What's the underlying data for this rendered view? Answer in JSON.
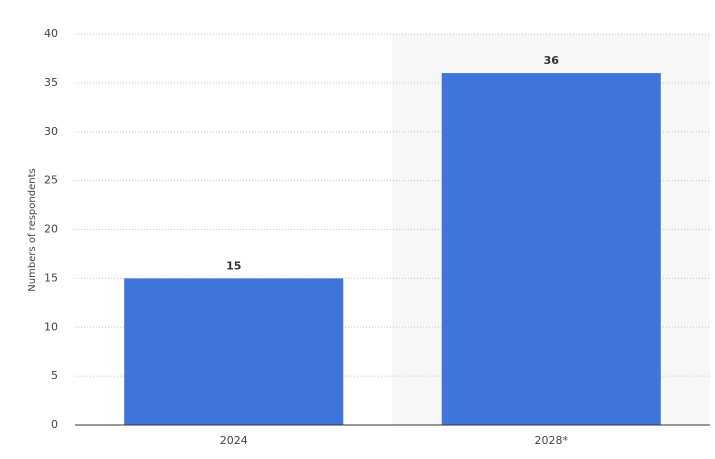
{
  "chart_data": {
    "type": "bar",
    "y_label": "Numbers of respondents",
    "categories": [
      "2024",
      "2028*"
    ],
    "values": [
      15,
      36
    ],
    "color": "#3f74d9",
    "ylim": [
      0,
      40
    ],
    "yticks": [
      0,
      5,
      10,
      15,
      20,
      25,
      30,
      35,
      40
    ],
    "grid": true
  }
}
